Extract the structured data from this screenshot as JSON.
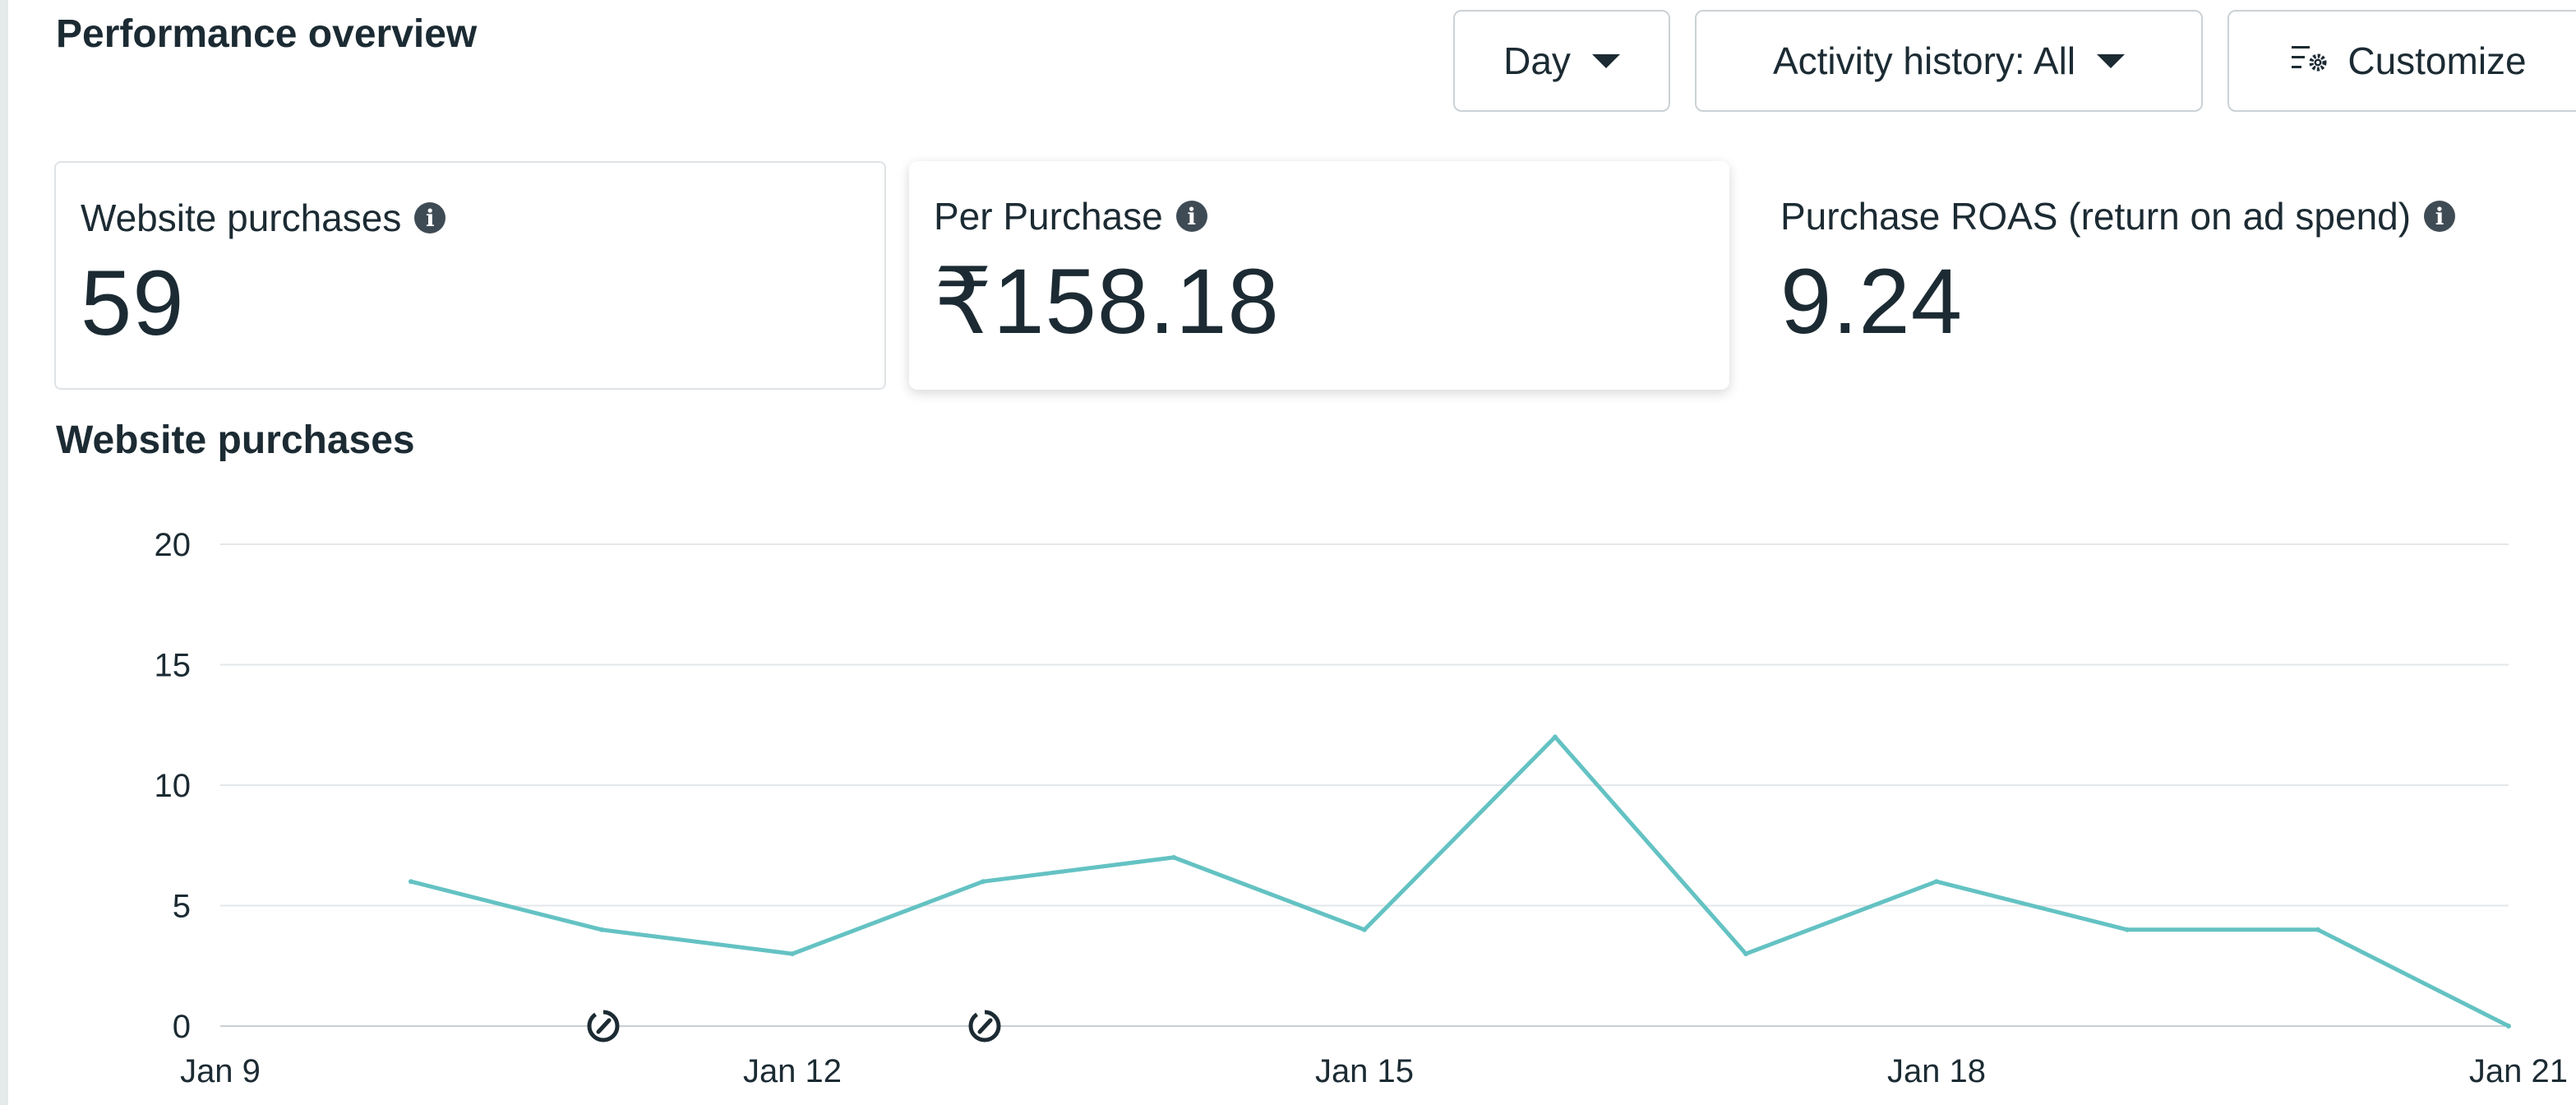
{
  "header": {
    "title": "Performance overview"
  },
  "toolbar": {
    "day_label": "Day",
    "activity_label": "Activity history: All",
    "customize_label": "Customize",
    "customize_icon": "sliders-gear-icon"
  },
  "metrics": [
    {
      "label": "Website purchases",
      "value": "59"
    },
    {
      "label": "Per Purchase",
      "value": "₹158.18"
    },
    {
      "label": "Purchase ROAS (return on ad spend)",
      "value": "9.24"
    }
  ],
  "info_icon": {
    "glyph": "i"
  },
  "chart_title": "Website purchases",
  "chart_data": {
    "type": "line",
    "x": [
      "Jan 9",
      "Jan 10",
      "Jan 11",
      "Jan 12",
      "Jan 13",
      "Jan 14",
      "Jan 15",
      "Jan 16",
      "Jan 17",
      "Jan 18",
      "Jan 19",
      "Jan 20",
      "Jan 21"
    ],
    "x_tick_labels": [
      "Jan 9",
      "Jan 12",
      "Jan 15",
      "Jan 18",
      "Jan 21"
    ],
    "series": [
      {
        "values": [
          null,
          6,
          4,
          3,
          6,
          7,
          4,
          12,
          3,
          6,
          4,
          4,
          0
        ]
      }
    ],
    "ylim": [
      0,
      20
    ],
    "y_ticks": [
      0,
      5,
      10,
      15,
      20
    ],
    "grid": true,
    "line_color": "#64c2c3",
    "annotations": [
      {
        "x": "Jan 11",
        "icon": "edit-history-icon"
      },
      {
        "x": "Jan 13",
        "icon": "edit-history-icon"
      }
    ]
  }
}
